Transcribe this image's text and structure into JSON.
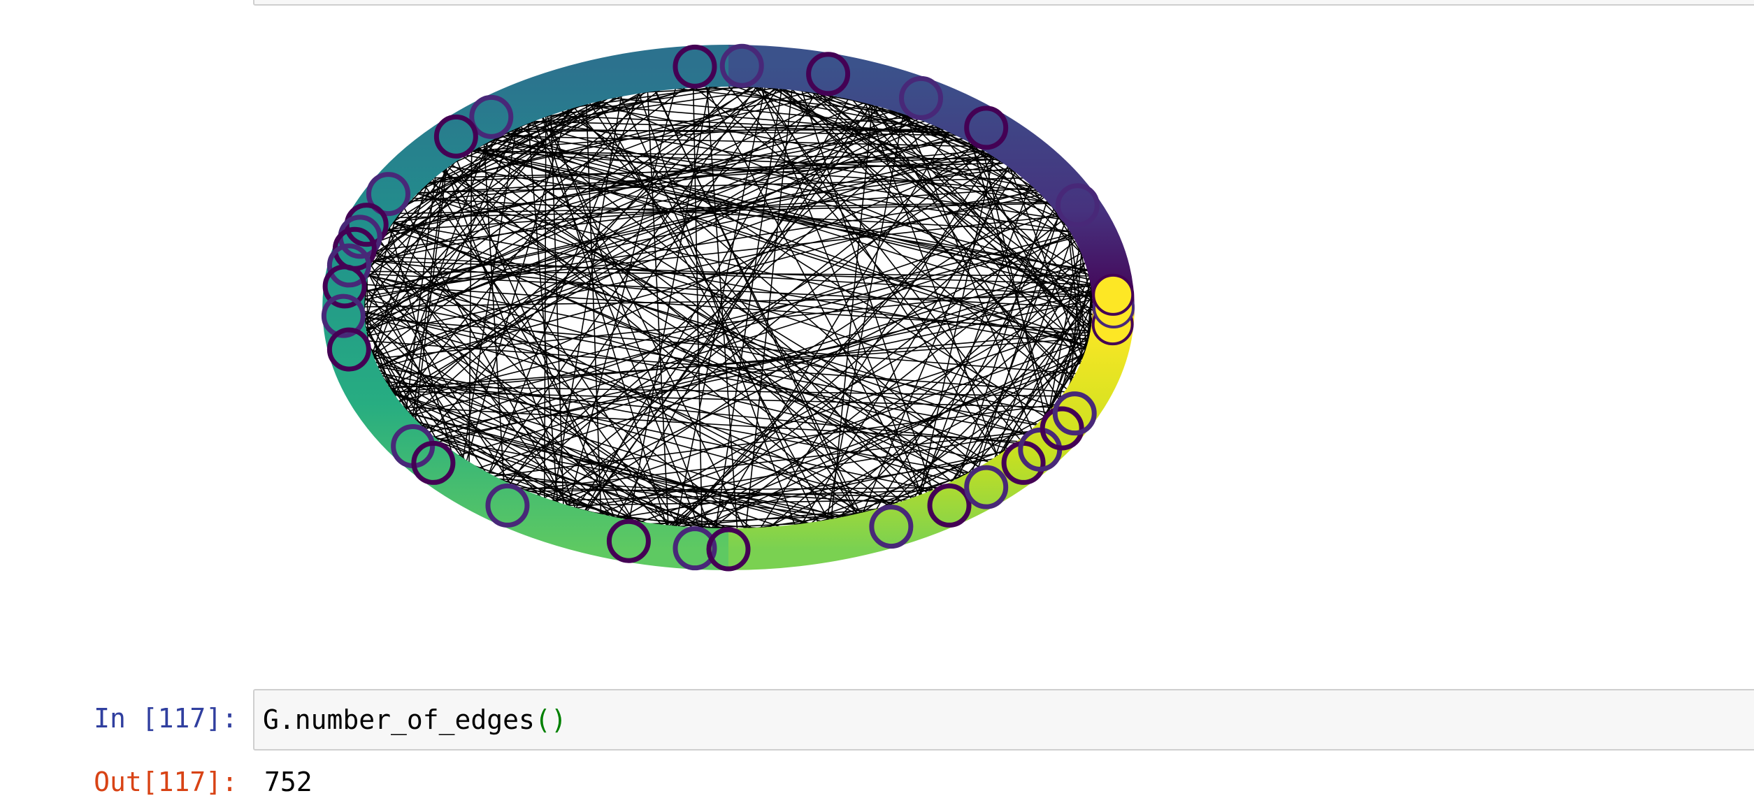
{
  "input_cell": {
    "prompt": "In [117]:",
    "code_main": "G.number_of_edges",
    "code_parens": "()"
  },
  "output_cell": {
    "prompt": "Out[117]:",
    "value": "752"
  },
  "figure": {
    "type": "circular network graph",
    "node_colormap": "viridis",
    "edge_color": "#000000",
    "ring_colors_clockwise_from_top": [
      "#3b528b",
      "#482878",
      "#440154",
      "#fde725",
      "#b5de2b",
      "#6ece58",
      "#35b779",
      "#1f9e89",
      "#26828e",
      "#31688e"
    ],
    "marker_colors": [
      "#440154",
      "#482878",
      "#fde725"
    ]
  }
}
